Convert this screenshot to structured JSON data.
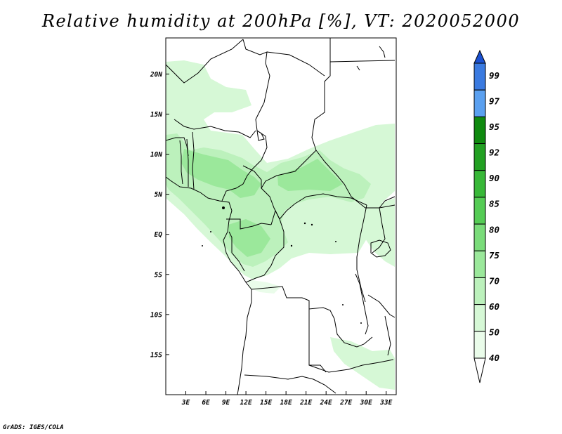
{
  "title": "Relative humidity at 200hPa [%], VT: 2020052000",
  "credit": "GrADS: IGES/COLA",
  "map": {
    "lon_range": [
      0,
      34.5
    ],
    "lat_range": [
      -20,
      24.5
    ],
    "x_ticks": [
      "3E",
      "6E",
      "9E",
      "12E",
      "15E",
      "18E",
      "21E",
      "24E",
      "27E",
      "30E",
      "33E"
    ],
    "x_tick_values": [
      3,
      6,
      9,
      12,
      15,
      18,
      21,
      24,
      27,
      30,
      33
    ],
    "y_ticks": [
      "20N",
      "15N",
      "10N",
      "5N",
      "EQ",
      "5S",
      "10S",
      "15S"
    ],
    "y_tick_values": [
      20,
      15,
      10,
      5,
      0,
      -5,
      -10,
      -15
    ]
  },
  "colorbar": {
    "levels": [
      "99",
      "97",
      "95",
      "92",
      "90",
      "85",
      "80",
      "75",
      "70",
      "60",
      "50",
      "40"
    ],
    "colors": [
      "#1a50d0",
      "#3a7ae0",
      "#5aa0f0",
      "#0f8a0f",
      "#22a022",
      "#38b838",
      "#55cc55",
      "#7adc7a",
      "#9be89b",
      "#bcf1bc",
      "#d6f8d6",
      "#eafcea"
    ]
  }
}
